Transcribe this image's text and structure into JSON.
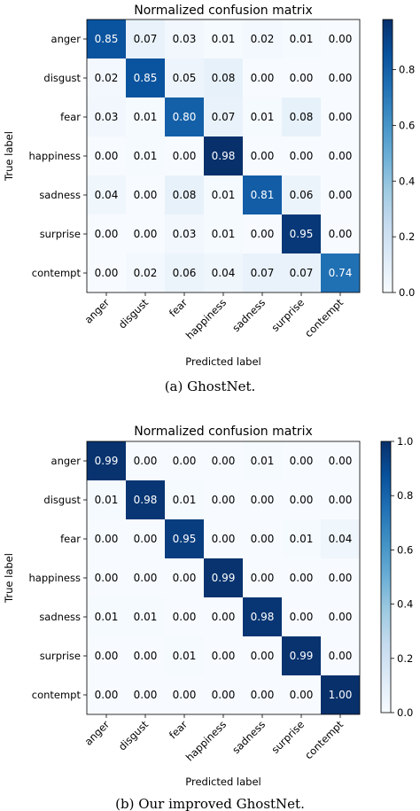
{
  "chart_data": [
    {
      "type": "heatmap",
      "title": "Normalized confusion matrix",
      "xlabel": "Predicted label",
      "ylabel": "True label",
      "caption": "(a) GhostNet.",
      "categories": [
        "anger",
        "disgust",
        "fear",
        "happiness",
        "sadness",
        "surprise",
        "contempt"
      ],
      "values": [
        [
          0.85,
          0.07,
          0.03,
          0.01,
          0.02,
          0.01,
          0.0
        ],
        [
          0.02,
          0.85,
          0.05,
          0.08,
          0.0,
          0.0,
          0.0
        ],
        [
          0.03,
          0.01,
          0.8,
          0.07,
          0.01,
          0.08,
          0.0
        ],
        [
          0.0,
          0.01,
          0.0,
          0.98,
          0.0,
          0.0,
          0.0
        ],
        [
          0.04,
          0.0,
          0.08,
          0.01,
          0.81,
          0.06,
          0.0
        ],
        [
          0.0,
          0.0,
          0.03,
          0.01,
          0.0,
          0.95,
          0.0
        ],
        [
          0.0,
          0.02,
          0.06,
          0.04,
          0.07,
          0.07,
          0.74
        ]
      ],
      "colorbar_ticks": [
        "0.0",
        "0.2",
        "0.4",
        "0.6",
        "0.8"
      ],
      "colorbar_tick_values": [
        0.0,
        0.2,
        0.4,
        0.6,
        0.8
      ],
      "color_range": [
        0,
        0.98
      ],
      "colormap": "Blues"
    },
    {
      "type": "heatmap",
      "title": "Normalized confusion matrix",
      "xlabel": "Predicted label",
      "ylabel": "True label",
      "caption": "(b) Our improved GhostNet.",
      "categories": [
        "anger",
        "disgust",
        "fear",
        "happiness",
        "sadness",
        "surprise",
        "contempt"
      ],
      "values": [
        [
          0.99,
          0.0,
          0.0,
          0.0,
          0.01,
          0.0,
          0.0
        ],
        [
          0.01,
          0.98,
          0.01,
          0.0,
          0.0,
          0.0,
          0.0
        ],
        [
          0.0,
          0.0,
          0.95,
          0.0,
          0.0,
          0.01,
          0.04
        ],
        [
          0.0,
          0.0,
          0.0,
          0.99,
          0.0,
          0.0,
          0.0
        ],
        [
          0.01,
          0.01,
          0.0,
          0.0,
          0.98,
          0.0,
          0.0
        ],
        [
          0.0,
          0.0,
          0.01,
          0.0,
          0.0,
          0.99,
          0.0
        ],
        [
          0.0,
          0.0,
          0.0,
          0.0,
          0.0,
          0.0,
          1.0
        ]
      ],
      "colorbar_ticks": [
        "0.0",
        "0.2",
        "0.4",
        "0.6",
        "0.8",
        "1.0"
      ],
      "colorbar_tick_values": [
        0.0,
        0.2,
        0.4,
        0.6,
        0.8,
        1.0
      ],
      "color_range": [
        0,
        1.0
      ],
      "colormap": "Blues"
    }
  ]
}
